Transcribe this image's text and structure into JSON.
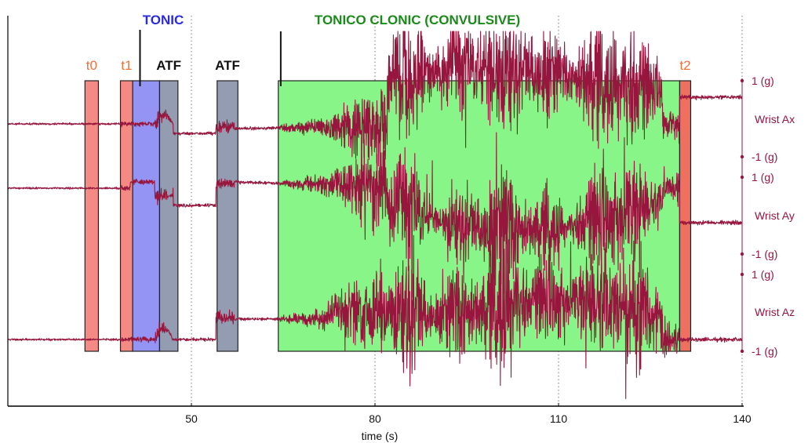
{
  "chart_data": {
    "type": "line",
    "xlabel": "time (s)",
    "xlim": [
      20,
      140
    ],
    "x_ticks": [
      50,
      80,
      110,
      140
    ],
    "x_tick_labels": [
      "50",
      "80",
      "110",
      "140"
    ],
    "grid": "vertical dotted lines at 50, 80, 110, 140",
    "phase_labels": [
      {
        "text": "TONIC",
        "color": "#2a2ae0",
        "pointer_x": 41.6
      },
      {
        "text": "TONICO CLONIC (CONVULSIVE)",
        "color": "#1a8a1a",
        "pointer_x": 64.6
      }
    ],
    "segments": [
      {
        "label": "t0",
        "start": 32.6,
        "end": 34.8,
        "fill": "#f48a83",
        "label_color": "#f0703a"
      },
      {
        "label": "t1",
        "start": 38.4,
        "end": 40.4,
        "fill": "#f48a83",
        "label_color": "#f0703a"
      },
      {
        "label": "",
        "start": 40.4,
        "end": 44.8,
        "fill": "#9494f4",
        "label_color": "#2a2ae0"
      },
      {
        "label": "ATF",
        "start": 44.8,
        "end": 47.8,
        "fill": "#949cb2",
        "label_color": "#111111"
      },
      {
        "label": "ATF",
        "start": 54.2,
        "end": 57.6,
        "fill": "#949cb2",
        "label_color": "#111111"
      },
      {
        "label": "",
        "start": 64.2,
        "end": 129.8,
        "fill": "#88f588",
        "label_color": "#1a8a1a"
      },
      {
        "label": "t2",
        "start": 129.8,
        "end": 131.6,
        "fill": "#f07060",
        "label_color": "#f0703a"
      }
    ],
    "series": [
      {
        "name": "Wrist Ax",
        "color": "#96163e",
        "baseline_offset": 0
      },
      {
        "name": "Wrist Ay",
        "color": "#96163e",
        "baseline_offset": 0
      },
      {
        "name": "Wrist Az",
        "color": "#96163e",
        "baseline_offset": 0
      }
    ],
    "right_axis": {
      "labels": [
        {
          "text": "1 (g)",
          "channel": "Wrist Ax",
          "g": 1
        },
        {
          "text": "Wrist Ax",
          "channel": "Wrist Ax",
          "g": 0
        },
        {
          "text": "-1 (g)",
          "channel": "Wrist Ax",
          "g": -1
        },
        {
          "text": "1 (g)",
          "channel": "Wrist Ay",
          "g": 1
        },
        {
          "text": "Wrist Ay",
          "channel": "Wrist Ay",
          "g": 0
        },
        {
          "text": "-1 (g)",
          "channel": "Wrist Ay",
          "g": -1
        },
        {
          "text": "1 (g)",
          "channel": "Wrist Az",
          "g": 1
        },
        {
          "text": "Wrist Az",
          "channel": "Wrist Az",
          "g": 0
        },
        {
          "text": "-1 (g)",
          "channel": "Wrist Az",
          "g": -1
        }
      ]
    }
  }
}
